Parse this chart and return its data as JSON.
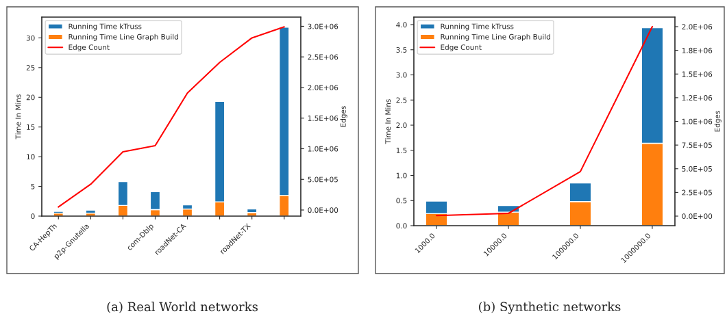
{
  "chart_data": [
    {
      "type": "bar",
      "stacked": true,
      "ylabel": "Time In Mins",
      "y2label": "Edges",
      "categories": [
        "CA-HepTh",
        "p2p-Gnutella",
        null,
        "com-Dblp",
        "roadNet-CA",
        null,
        "roadNet-TX",
        null
      ],
      "series": [
        {
          "name": "Running Time Line Graph Build",
          "color": "#ff7f0e",
          "values": [
            0.5,
            0.5,
            1.8,
            1.1,
            1.2,
            2.4,
            0.6,
            3.5
          ]
        },
        {
          "name": "Running Time kTruss",
          "color": "#1f77b4",
          "values": [
            0.3,
            0.5,
            4.0,
            3.0,
            0.7,
            16.9,
            0.6,
            28.3
          ]
        },
        {
          "name": "Edge Count",
          "type": "line",
          "axis": "y2",
          "color": "#ff0000",
          "values": [
            50000,
            420000,
            950000,
            1050000,
            1910000,
            2410000,
            2810000,
            2990000
          ]
        }
      ],
      "ylim": [
        0,
        33.5
      ],
      "yticks": [
        0,
        5,
        10,
        15,
        20,
        25,
        30
      ],
      "y2lim": [
        -100000,
        3150000
      ],
      "y2ticks": [
        {
          "value": 0,
          "label": "0.0E+00"
        },
        {
          "value": 500000,
          "label": "5.0E+05"
        },
        {
          "value": 1000000,
          "label": "1.0E+06"
        },
        {
          "value": 1500000,
          "label": "1.5E+06"
        },
        {
          "value": 2000000,
          "label": "2.0E+06"
        },
        {
          "value": 2500000,
          "label": "2.5E+06"
        },
        {
          "value": 3000000,
          "label": "3.0E+06"
        }
      ],
      "legend": "top left",
      "grid": false,
      "annotations": [
        "(a) Real World networks"
      ]
    },
    {
      "type": "bar",
      "stacked": true,
      "ylabel": "Time In Mins",
      "y2label": "Edges",
      "categories": [
        "1000.0",
        "10000.0",
        "100000.0",
        "1000000.0"
      ],
      "series": [
        {
          "name": "Running Time Line Graph Build",
          "color": "#ff7f0e",
          "values": [
            0.24,
            0.27,
            0.48,
            1.64
          ]
        },
        {
          "name": "Running Time kTruss",
          "color": "#1f77b4",
          "values": [
            0.25,
            0.13,
            0.37,
            2.3
          ]
        },
        {
          "name": "Edge Count",
          "type": "line",
          "axis": "y2",
          "color": "#ff0000",
          "values": [
            5000,
            29000,
            470000,
            2000000
          ]
        }
      ],
      "ylim": [
        0,
        4.15
      ],
      "yticks": [
        {
          "value": 0,
          "label": "0.0"
        },
        0.5,
        {
          "value": 1,
          "label": "1.0"
        },
        1.5,
        {
          "value": 2,
          "label": "2.0"
        },
        2.5,
        {
          "value": 3,
          "label": "3.0"
        },
        3.5,
        {
          "value": 4,
          "label": "4.0"
        }
      ],
      "y2lim": [
        -101000,
        2101000
      ],
      "y2ticks": [
        {
          "value": 0,
          "label": "0.0E+00"
        },
        {
          "value": 250000,
          "label": "2.5E+05"
        },
        {
          "value": 500000,
          "label": "5.0E+05"
        },
        {
          "value": 750000,
          "label": "7.5E+05"
        },
        {
          "value": 1000000,
          "label": "1.0E+06"
        },
        {
          "value": 1250000,
          "label": "1.2E+06"
        },
        {
          "value": 1500000,
          "label": "1.5E+06"
        },
        {
          "value": 1750000,
          "label": "1.8E+06"
        },
        {
          "value": 2000000,
          "label": "2.0E+06"
        }
      ],
      "legend": "top left",
      "grid": false,
      "annotations": [
        "(b) Synthetic networks"
      ]
    }
  ]
}
